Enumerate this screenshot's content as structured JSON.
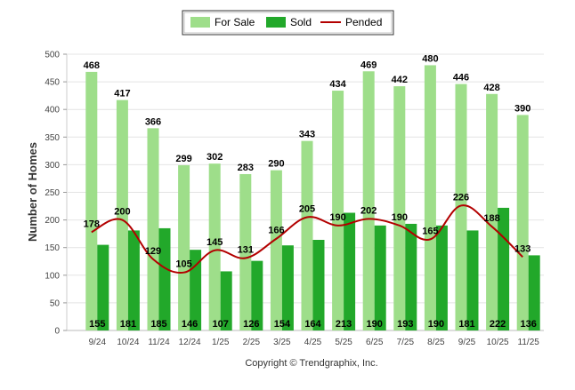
{
  "chart_data": {
    "type": "bar",
    "title": "",
    "xlabel": "",
    "ylabel": "Number of Homes",
    "ylim": [
      0,
      500
    ],
    "yticks": [
      0,
      50,
      100,
      150,
      200,
      250,
      300,
      350,
      400,
      450,
      500
    ],
    "grid": true,
    "legend_position": "top-center",
    "categories": [
      "9/24",
      "10/24",
      "11/24",
      "12/24",
      "1/25",
      "2/25",
      "3/25",
      "4/25",
      "5/25",
      "6/25",
      "7/25",
      "8/25",
      "9/25",
      "10/25",
      "11/25"
    ],
    "series": [
      {
        "name": "For Sale",
        "type": "bar",
        "color": "#9ede8a",
        "values": [
          468,
          417,
          366,
          299,
          302,
          283,
          290,
          343,
          434,
          469,
          442,
          480,
          446,
          428,
          390
        ]
      },
      {
        "name": "Sold",
        "type": "bar",
        "color": "#22a82a",
        "values": [
          155,
          181,
          185,
          146,
          107,
          126,
          154,
          164,
          213,
          190,
          193,
          190,
          181,
          222,
          136
        ]
      },
      {
        "name": "Pended",
        "type": "line",
        "color": "#b30000",
        "values": [
          178,
          200,
          129,
          105,
          145,
          131,
          166,
          205,
          190,
          202,
          190,
          165,
          226,
          188,
          133
        ]
      }
    ],
    "copyright": "Copyright © Trendgraphix, Inc."
  }
}
